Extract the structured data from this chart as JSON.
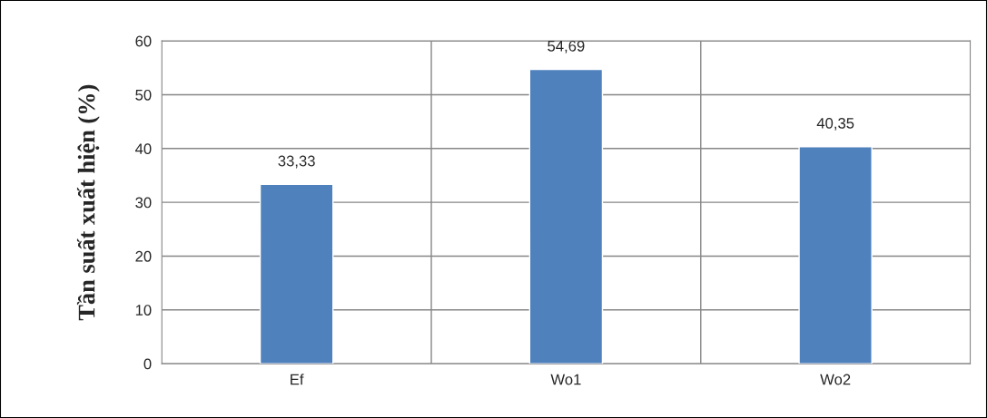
{
  "chart_data": {
    "type": "bar",
    "ylabel": "Tần suất xuất hiện (%)",
    "categories": [
      "Ef",
      "Wo1",
      "Wo2"
    ],
    "values": [
      33.33,
      54.69,
      40.35
    ],
    "value_labels": [
      "33,33",
      "54,69",
      "40,35"
    ],
    "color": "#4f81bd",
    "ylim": [
      0,
      60
    ],
    "yticks": [
      0,
      10,
      20,
      30,
      40,
      50,
      60
    ],
    "grid": true
  }
}
